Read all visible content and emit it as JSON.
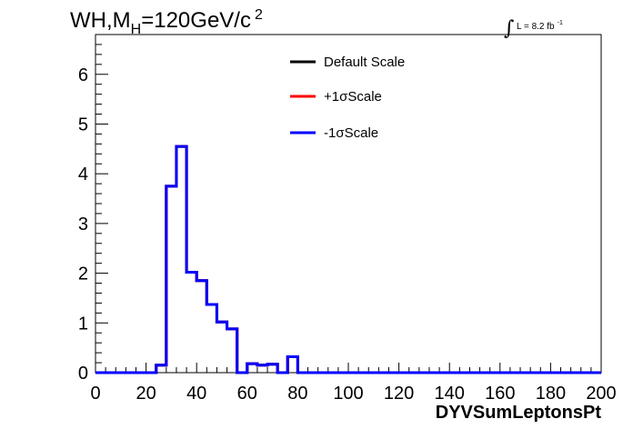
{
  "title": {
    "main_part1": "WH,M",
    "main_sub": "H",
    "main_part2": "=120GeV/c",
    "main_sup": "2"
  },
  "luminosity": {
    "integral": "∫",
    "text": "L = 8.2 fb",
    "sup": "-1"
  },
  "colors": {
    "default": "#000000",
    "plus": "#ff0000",
    "minus": "#0000ff",
    "frame": "#000000"
  },
  "chart_data": {
    "type": "line",
    "histogram": true,
    "xlabel": "DYVSumLeptonsPt",
    "ylabel": "",
    "xlim": [
      0,
      200
    ],
    "ylim": [
      0,
      6.8
    ],
    "xticks": [
      "0",
      "20",
      "40",
      "60",
      "80",
      "100",
      "120",
      "140",
      "160",
      "180",
      "200"
    ],
    "yticks": [
      "0",
      "1",
      "2",
      "3",
      "4",
      "5",
      "6"
    ],
    "legend_position": "top-center",
    "bin_width": 4,
    "bin_edges_start": 0,
    "series": [
      {
        "name": "Default Scale",
        "color": "#000000",
        "values": [
          0,
          0,
          0,
          0,
          0,
          0,
          0.15,
          3.75,
          4.55,
          2.02,
          1.85,
          1.37,
          1.02,
          0.88,
          0,
          0.18,
          0.15,
          0.17,
          0,
          0.32,
          0,
          0,
          0,
          0,
          0,
          0,
          0,
          0,
          0,
          0,
          0,
          0,
          0,
          0,
          0,
          0,
          0,
          0,
          0,
          0,
          0,
          0,
          0,
          0,
          0,
          0,
          0,
          0,
          0,
          0
        ]
      },
      {
        "name": "+1σScale",
        "color": "#ff0000",
        "values": [
          0,
          0,
          0,
          0,
          0,
          0,
          0.15,
          3.75,
          4.55,
          2.02,
          1.85,
          1.37,
          1.02,
          0.88,
          0,
          0.18,
          0.15,
          0.17,
          0,
          0.32,
          0,
          0,
          0,
          0,
          0,
          0,
          0,
          0,
          0,
          0,
          0,
          0,
          0,
          0,
          0,
          0,
          0,
          0,
          0,
          0,
          0,
          0,
          0,
          0,
          0,
          0,
          0,
          0,
          0,
          0
        ]
      },
      {
        "name": "-1σScale",
        "color": "#0000ff",
        "values": [
          0,
          0,
          0,
          0,
          0,
          0,
          0.15,
          3.75,
          4.55,
          2.02,
          1.85,
          1.37,
          1.02,
          0.88,
          0,
          0.18,
          0.15,
          0.17,
          0,
          0.32,
          0,
          0,
          0,
          0,
          0,
          0,
          0,
          0,
          0,
          0,
          0,
          0,
          0,
          0,
          0,
          0,
          0,
          0,
          0,
          0,
          0,
          0,
          0,
          0,
          0,
          0,
          0,
          0,
          0,
          0
        ]
      }
    ]
  }
}
